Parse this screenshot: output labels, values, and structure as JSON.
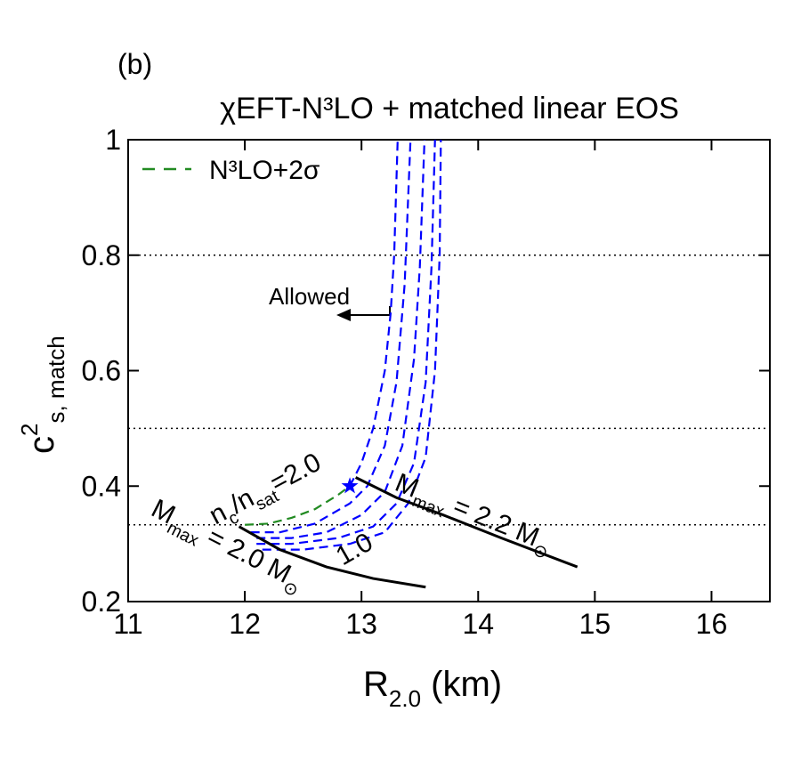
{
  "chart_data": {
    "type": "line",
    "panel_label": "(b)",
    "title": "χEFT-N³LO + matched linear EOS",
    "x_label": [
      {
        "text": "R"
      },
      {
        "text": "2.0",
        "shift": "sub"
      },
      {
        "text": " (km)"
      }
    ],
    "y_label": [
      {
        "text": "c"
      },
      {
        "text": "2",
        "shift": "sup"
      },
      {
        "text": "s, match",
        "shift": "sub"
      }
    ],
    "xlim": [
      11,
      16.5
    ],
    "xticks": [
      11,
      12,
      13,
      14,
      15,
      16
    ],
    "ylim": [
      0.2,
      1
    ],
    "yticks": [
      0.2,
      0.4,
      0.6,
      0.8,
      1
    ],
    "hlines": [
      0.8,
      0.5,
      0.333
    ],
    "legend": "upper left",
    "series": [
      {
        "name": "N³LO+2σ",
        "color": "#228b22",
        "style": "dashed",
        "x": [
          12.0,
          12.2,
          12.4,
          12.6,
          12.8,
          12.9
        ],
        "values": [
          0.333,
          0.335,
          0.345,
          0.36,
          0.385,
          0.4
        ]
      },
      {
        "color": "#0000ff",
        "style": "dashed",
        "x": [
          12.9,
          13.0,
          13.1,
          13.2,
          13.25,
          13.28,
          13.31
        ],
        "values": [
          0.4,
          0.44,
          0.5,
          0.6,
          0.7,
          0.8,
          1.0
        ]
      },
      {
        "color": "#0000ff",
        "style": "dashed",
        "x": [
          12.05,
          12.3,
          12.6,
          12.9,
          13.05,
          13.2,
          13.3,
          13.37,
          13.42
        ],
        "values": [
          0.32,
          0.32,
          0.335,
          0.37,
          0.4,
          0.47,
          0.58,
          0.75,
          1.0
        ]
      },
      {
        "color": "#0000ff",
        "style": "dashed",
        "x": [
          12.1,
          12.4,
          12.7,
          13.0,
          13.2,
          13.35,
          13.45,
          13.5,
          13.54
        ],
        "values": [
          0.31,
          0.31,
          0.32,
          0.35,
          0.39,
          0.47,
          0.62,
          0.78,
          1.0
        ]
      },
      {
        "color": "#0000ff",
        "style": "dashed",
        "x": [
          12.1,
          12.4,
          12.8,
          13.1,
          13.3,
          13.45,
          13.55,
          13.6,
          13.63
        ],
        "values": [
          0.3,
          0.3,
          0.31,
          0.33,
          0.37,
          0.44,
          0.58,
          0.78,
          1.0
        ]
      },
      {
        "color": "#0000ff",
        "style": "dashed",
        "x": [
          12.15,
          12.5,
          12.9,
          13.2,
          13.4,
          13.55,
          13.63,
          13.67,
          13.68
        ],
        "values": [
          0.29,
          0.29,
          0.3,
          0.32,
          0.37,
          0.45,
          0.6,
          0.8,
          1.0
        ]
      },
      {
        "color": "#000000",
        "style": "solid",
        "x": [
          11.95,
          12.3,
          12.7,
          13.1,
          13.55
        ],
        "values": [
          0.33,
          0.29,
          0.26,
          0.24,
          0.225
        ]
      },
      {
        "color": "#000000",
        "style": "solid",
        "x": [
          12.95,
          13.3,
          13.7,
          14.2,
          14.85
        ],
        "values": [
          0.415,
          0.38,
          0.35,
          0.31,
          0.26
        ]
      },
      {
        "color": "#0000ff",
        "marker": "star",
        "x": [
          12.9
        ],
        "values": [
          0.4
        ]
      }
    ],
    "annotations": [
      [
        {
          "text": "Allowed"
        }
      ],
      [
        {
          "text": "n"
        },
        {
          "text": "c",
          "shift": "sub"
        },
        {
          "text": "/n"
        },
        {
          "text": "sat",
          "shift": "sub"
        },
        {
          "text": "=2.0"
        }
      ],
      [
        {
          "text": "1.0"
        }
      ],
      [
        {
          "text": "M"
        },
        {
          "text": "max",
          "shift": "sub"
        },
        {
          "text": " = 2.0 M"
        },
        {
          "text": "⊙",
          "shift": "sub"
        }
      ],
      [
        {
          "text": "M"
        },
        {
          "text": "max",
          "shift": "sub"
        },
        {
          "text": " = 2.2 M"
        },
        {
          "text": "⊙",
          "shift": "sub"
        }
      ]
    ]
  }
}
